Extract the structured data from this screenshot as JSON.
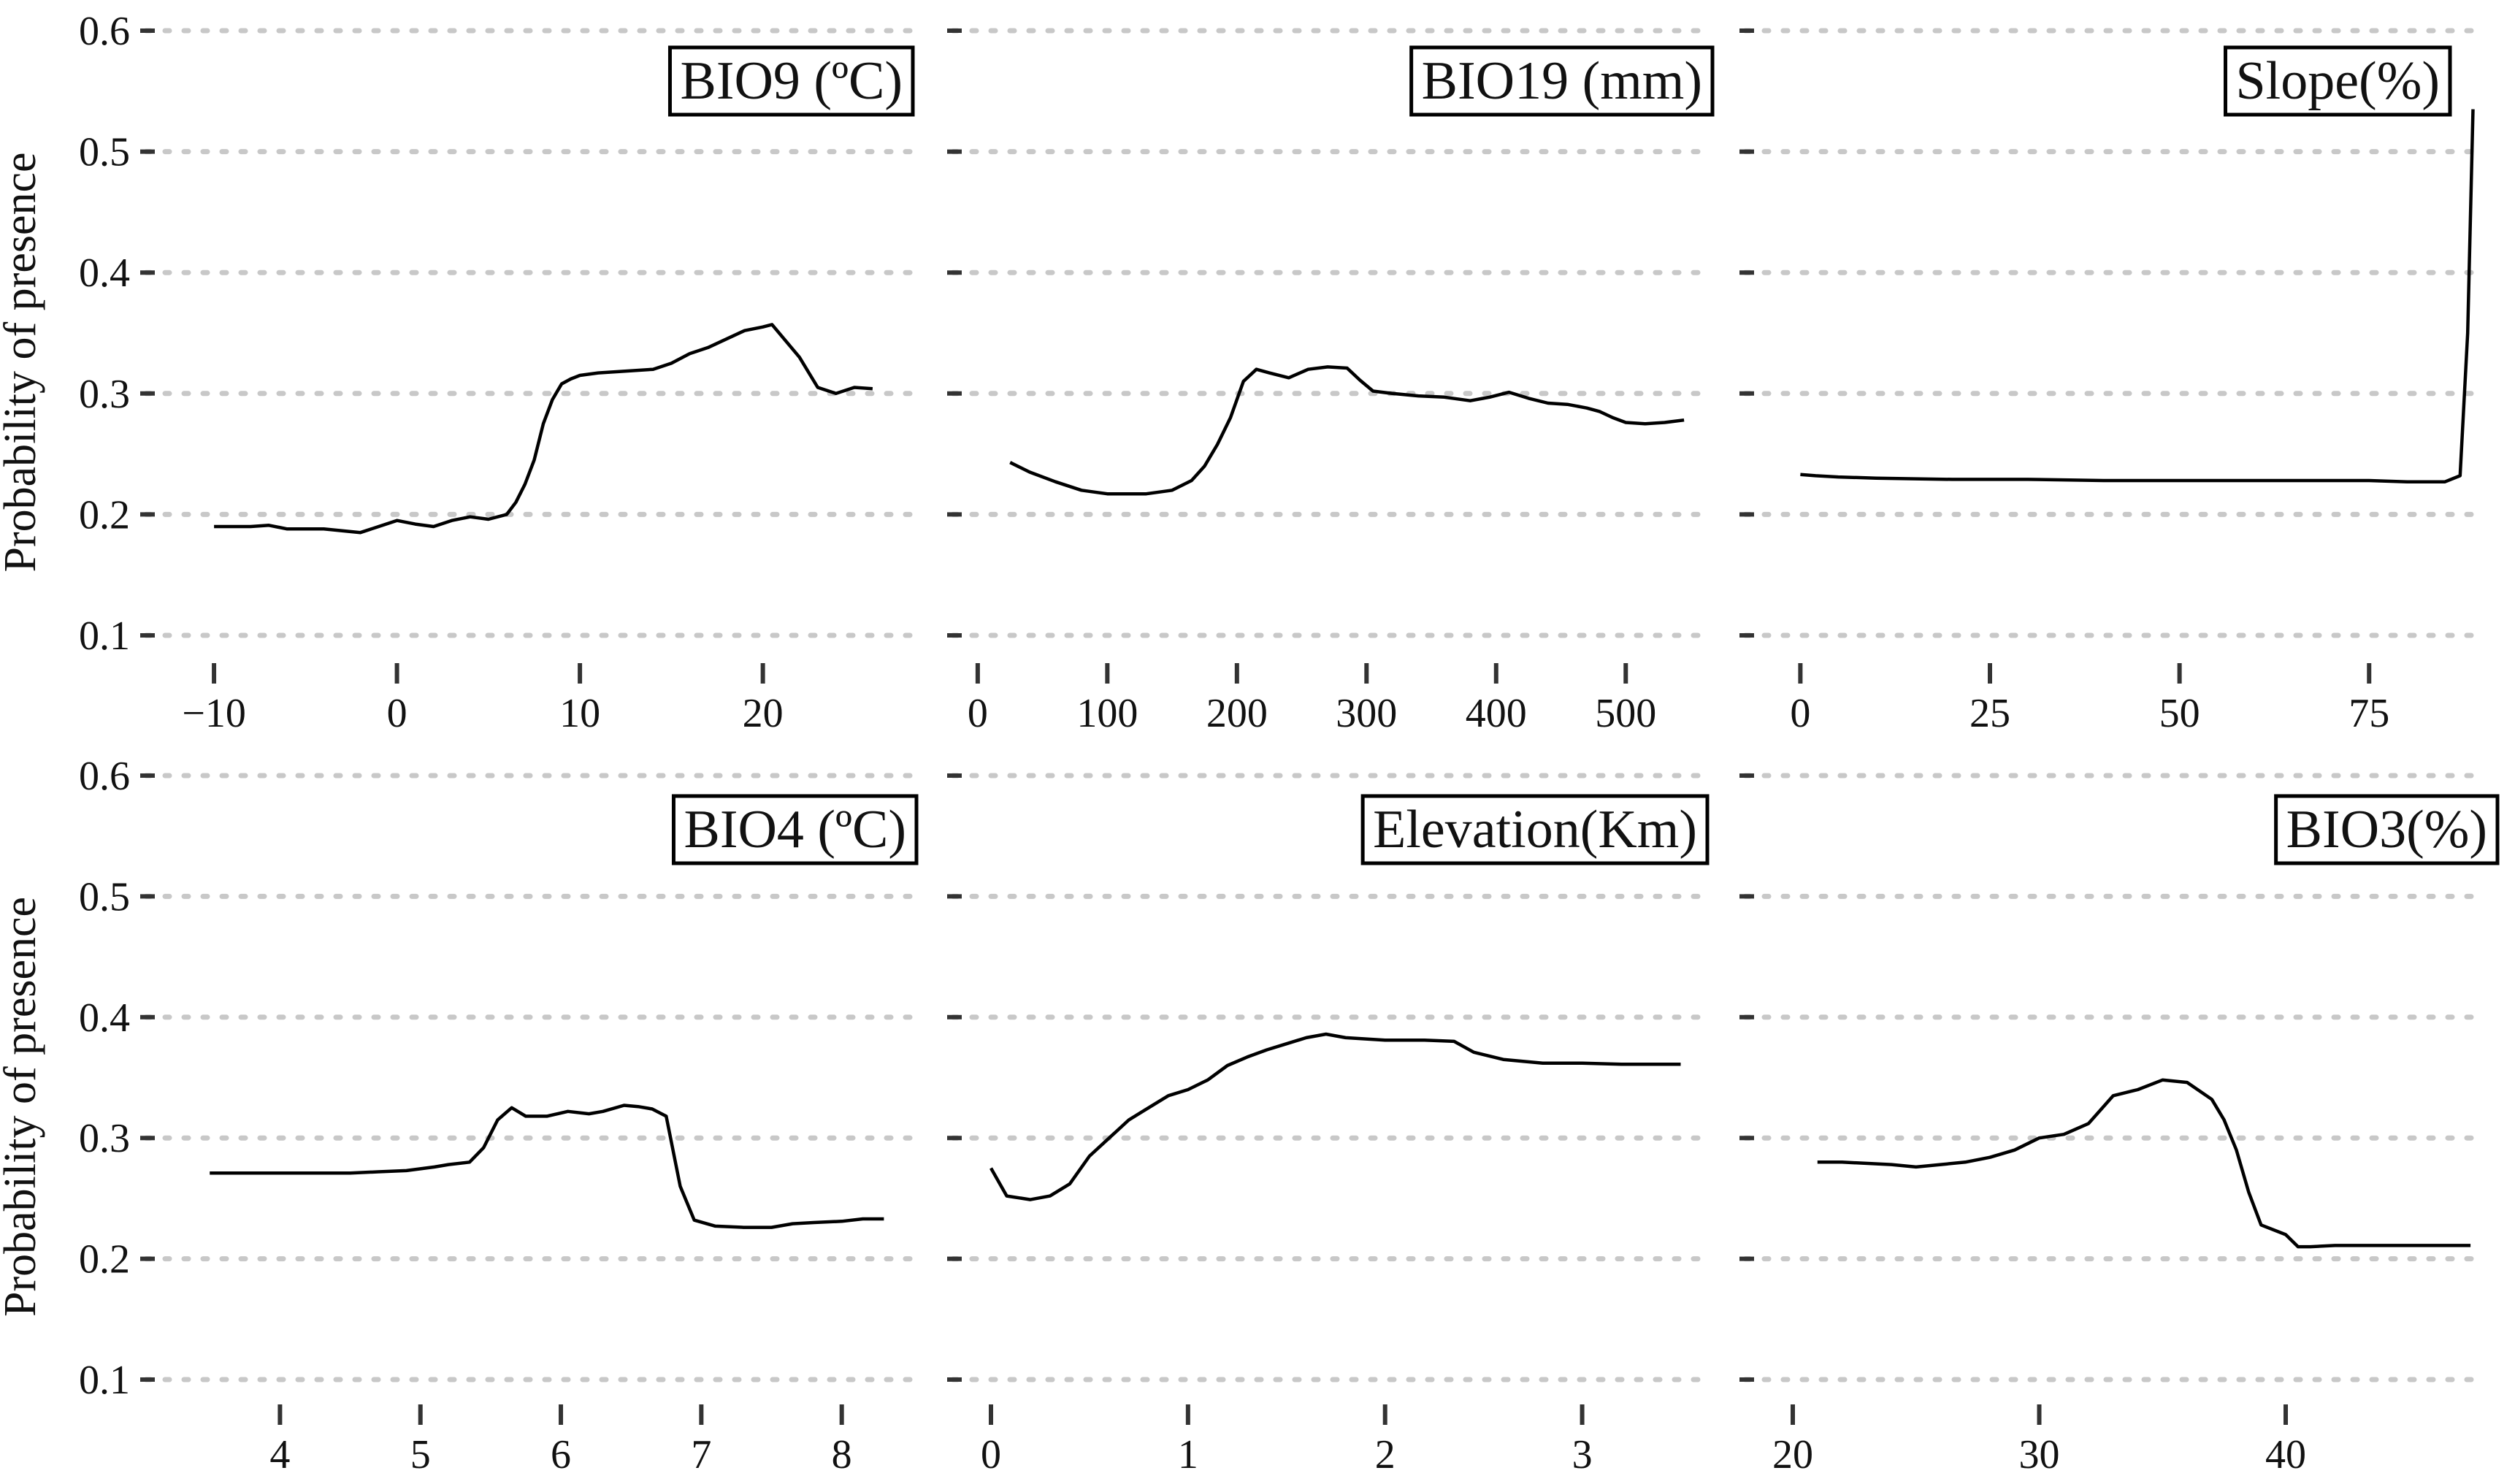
{
  "colors": {
    "background": "#ffffff",
    "line": "#000000",
    "grid": "#c8c8c8"
  },
  "chart_data": [
    {
      "type": "line",
      "title": "BIO9 (ºC)",
      "ylabel": "Probability of presence",
      "xlabel": "",
      "xlim": [
        -11,
        27
      ],
      "ylim": [
        0.1,
        0.6
      ],
      "xticks": [
        -10,
        0,
        10,
        20
      ],
      "xtick_labels": [
        "−10",
        "0",
        "10",
        "20"
      ],
      "yticks": [
        0.1,
        0.2,
        0.3,
        0.4,
        0.5,
        0.6
      ],
      "ytick_labels": [
        "0.1",
        "0.2",
        "0.3",
        "0.4",
        "0.5",
        "0.6"
      ],
      "grid": true,
      "series": [
        {
          "x": [
            -10,
            -8,
            -7,
            -6,
            -4,
            -2,
            -1,
            0,
            1,
            2,
            3,
            4,
            5,
            6,
            6.5,
            7,
            7.5,
            8,
            8.5,
            9,
            9.5,
            10,
            11,
            12,
            14,
            15,
            16,
            17,
            18,
            19,
            20,
            20.5,
            21,
            22,
            23,
            24,
            25,
            26
          ],
          "y": [
            0.19,
            0.19,
            0.191,
            0.188,
            0.188,
            0.185,
            0.19,
            0.195,
            0.192,
            0.19,
            0.195,
            0.198,
            0.196,
            0.2,
            0.21,
            0.225,
            0.245,
            0.275,
            0.295,
            0.308,
            0.312,
            0.315,
            0.317,
            0.318,
            0.32,
            0.325,
            0.333,
            0.338,
            0.345,
            0.352,
            0.355,
            0.357,
            0.348,
            0.33,
            0.305,
            0.3,
            0.305,
            0.304
          ]
        }
      ]
    },
    {
      "type": "line",
      "title": "BIO19 (mm)",
      "xlabel": "",
      "xlim": [
        -5,
        550
      ],
      "ylim": [
        0.1,
        0.6
      ],
      "xticks": [
        0,
        100,
        200,
        300,
        400,
        500
      ],
      "xtick_labels": [
        "0",
        "100",
        "200",
        "300",
        "400",
        "500"
      ],
      "yticks": [
        0.1,
        0.2,
        0.3,
        0.4,
        0.5,
        0.6
      ],
      "grid": true,
      "series": [
        {
          "x": [
            25,
            40,
            60,
            80,
            100,
            130,
            150,
            165,
            175,
            185,
            195,
            205,
            215,
            225,
            240,
            255,
            270,
            285,
            295,
            305,
            320,
            340,
            360,
            380,
            395,
            410,
            425,
            440,
            455,
            470,
            480,
            490,
            500,
            515,
            530,
            545
          ],
          "y": [
            0.243,
            0.235,
            0.227,
            0.22,
            0.217,
            0.217,
            0.22,
            0.228,
            0.24,
            0.258,
            0.28,
            0.31,
            0.32,
            0.317,
            0.313,
            0.32,
            0.322,
            0.321,
            0.311,
            0.302,
            0.3,
            0.298,
            0.297,
            0.294,
            0.297,
            0.301,
            0.296,
            0.292,
            0.291,
            0.288,
            0.285,
            0.28,
            0.276,
            0.275,
            0.276,
            0.278
          ]
        }
      ]
    },
    {
      "type": "line",
      "title": "Slope(%)",
      "xlabel": "",
      "xlim": [
        -1,
        90
      ],
      "ylim": [
        0.1,
        0.6
      ],
      "xticks": [
        0,
        25,
        50,
        75
      ],
      "xtick_labels": [
        "0",
        "25",
        "50",
        "75"
      ],
      "yticks": [
        0.1,
        0.2,
        0.3,
        0.4,
        0.5,
        0.6
      ],
      "grid": true,
      "series": [
        {
          "x": [
            0,
            2,
            5,
            10,
            20,
            30,
            40,
            50,
            60,
            70,
            75,
            80,
            85,
            87,
            88,
            88.7
          ],
          "y": [
            0.233,
            0.232,
            0.231,
            0.23,
            0.229,
            0.229,
            0.228,
            0.228,
            0.228,
            0.228,
            0.228,
            0.227,
            0.227,
            0.232,
            0.35,
            0.535
          ]
        }
      ]
    },
    {
      "type": "line",
      "title": "BIO4 (ºC)",
      "ylabel": "Probability of presence",
      "xlabel": "",
      "xlim": [
        3.4,
        8.35
      ],
      "ylim": [
        0.1,
        0.6
      ],
      "xticks": [
        4,
        5,
        6,
        7,
        8
      ],
      "xtick_labels": [
        "4",
        "5",
        "6",
        "7",
        "8"
      ],
      "yticks": [
        0.1,
        0.2,
        0.3,
        0.4,
        0.5,
        0.6
      ],
      "ytick_labels": [
        "0.1",
        "0.2",
        "0.3",
        "0.4",
        "0.5",
        "0.6"
      ],
      "grid": true,
      "series": [
        {
          "x": [
            3.5,
            4.0,
            4.5,
            4.7,
            4.9,
            5.1,
            5.2,
            5.35,
            5.45,
            5.55,
            5.65,
            5.75,
            5.9,
            6.05,
            6.2,
            6.3,
            6.45,
            6.55,
            6.65,
            6.75,
            6.85,
            6.95,
            7.1,
            7.3,
            7.5,
            7.65,
            7.8,
            8.0,
            8.15,
            8.3
          ],
          "y": [
            0.271,
            0.271,
            0.271,
            0.272,
            0.273,
            0.276,
            0.278,
            0.28,
            0.292,
            0.315,
            0.325,
            0.318,
            0.318,
            0.322,
            0.32,
            0.322,
            0.327,
            0.326,
            0.324,
            0.318,
            0.26,
            0.232,
            0.227,
            0.226,
            0.226,
            0.229,
            0.23,
            0.231,
            0.233,
            0.233
          ]
        }
      ]
    },
    {
      "type": "line",
      "title": "Elevation(Km)",
      "xlabel": "",
      "xlim": [
        -0.1,
        3.55
      ],
      "ylim": [
        0.1,
        0.6
      ],
      "xticks": [
        0,
        1,
        2,
        3
      ],
      "xtick_labels": [
        "0",
        "1",
        "2",
        "3"
      ],
      "yticks": [
        0.1,
        0.2,
        0.3,
        0.4,
        0.5,
        0.6
      ],
      "grid": true,
      "series": [
        {
          "x": [
            0,
            0.08,
            0.2,
            0.3,
            0.4,
            0.5,
            0.6,
            0.7,
            0.8,
            0.9,
            1.0,
            1.1,
            1.2,
            1.3,
            1.4,
            1.5,
            1.6,
            1.7,
            1.8,
            2.0,
            2.2,
            2.35,
            2.45,
            2.6,
            2.8,
            3.0,
            3.2,
            3.5
          ],
          "y": [
            0.275,
            0.252,
            0.249,
            0.252,
            0.262,
            0.285,
            0.3,
            0.315,
            0.325,
            0.335,
            0.34,
            0.348,
            0.36,
            0.367,
            0.373,
            0.378,
            0.383,
            0.386,
            0.383,
            0.381,
            0.381,
            0.38,
            0.371,
            0.365,
            0.362,
            0.362,
            0.361,
            0.361
          ]
        }
      ]
    },
    {
      "type": "line",
      "title": "BIO3(%)",
      "xlabel": "",
      "xlim": [
        20,
        48
      ],
      "ylim": [
        0.1,
        0.6
      ],
      "xticks": [
        20,
        30,
        40
      ],
      "xtick_labels": [
        "20",
        "30",
        "40"
      ],
      "yticks": [
        0.1,
        0.2,
        0.3,
        0.4,
        0.5,
        0.6
      ],
      "grid": true,
      "series": [
        {
          "x": [
            21,
            22,
            24,
            25,
            26,
            27,
            28,
            29,
            30,
            31,
            32,
            33,
            34,
            35,
            36,
            37,
            37.5,
            38,
            38.5,
            39,
            40,
            40.5,
            41,
            42,
            43,
            45,
            47.5
          ],
          "y": [
            0.28,
            0.28,
            0.278,
            0.276,
            0.278,
            0.28,
            0.284,
            0.29,
            0.3,
            0.303,
            0.312,
            0.335,
            0.34,
            0.348,
            0.346,
            0.332,
            0.315,
            0.29,
            0.255,
            0.228,
            0.22,
            0.21,
            0.21,
            0.211,
            0.211,
            0.211,
            0.211
          ]
        }
      ]
    }
  ]
}
